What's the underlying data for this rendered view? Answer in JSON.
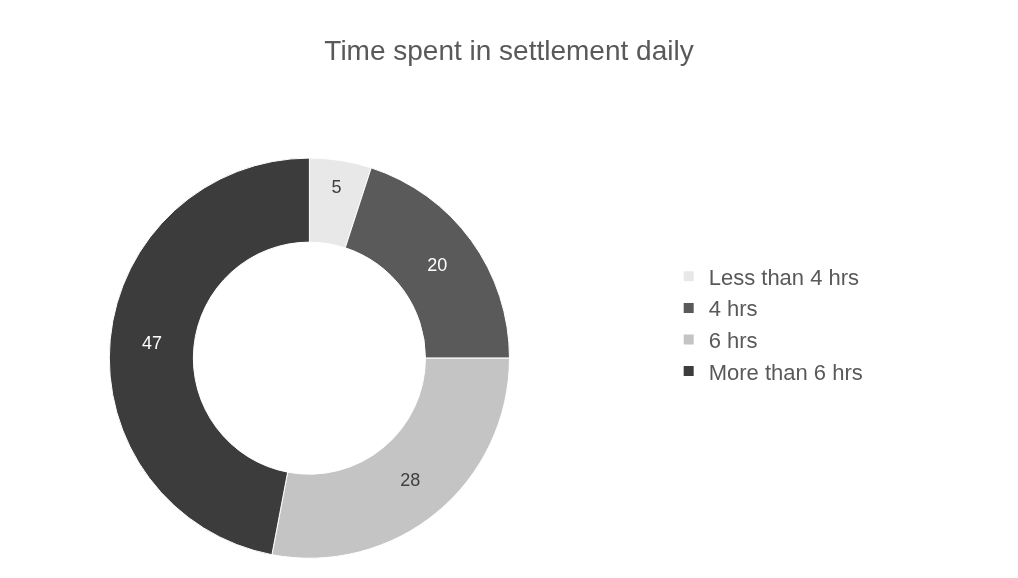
{
  "chart_data": {
    "type": "donut",
    "title": "Time spent in settlement daily",
    "categories": [
      "Less than 4 hrs",
      "4 hrs",
      "6 hrs",
      "More than 6 hrs"
    ],
    "values": [
      5,
      20,
      28,
      47
    ],
    "colors": [
      "#e8e8e8",
      "#5a5a5a",
      "#c4c4c4",
      "#3c3c3c"
    ],
    "data_labels": true,
    "legend": "right"
  }
}
